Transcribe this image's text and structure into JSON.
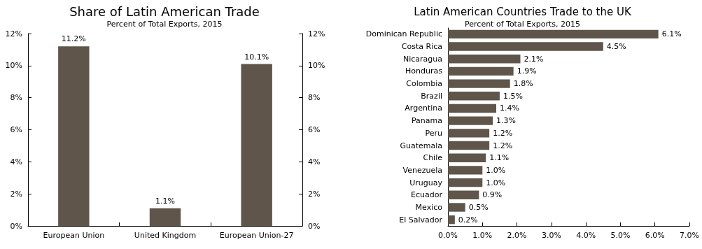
{
  "chart_data": [
    {
      "type": "bar",
      "title": "Share of Latin American Trade",
      "subtitle": "Percent of Total Exports, 2015",
      "categories": [
        "European Union",
        "United Kingdom",
        "European Union-27"
      ],
      "values": [
        11.2,
        1.1,
        10.1
      ],
      "value_labels": [
        "11.2%",
        "1.1%",
        "10.1%"
      ],
      "color": "#5f554a",
      "ylim": [
        0,
        12
      ],
      "yticks": [
        {
          "value": 0,
          "label": "0%"
        },
        {
          "value": 2,
          "label": "2%"
        },
        {
          "value": 4,
          "label": "4%"
        },
        {
          "value": 6,
          "label": "6%"
        },
        {
          "value": 8,
          "label": "8%"
        },
        {
          "value": 10,
          "label": "10%"
        },
        {
          "value": 12,
          "label": "12%"
        }
      ],
      "y2lim": [
        0,
        12
      ],
      "y2ticks": [
        {
          "value": 0,
          "label": "0%"
        },
        {
          "value": 2,
          "label": "2%"
        },
        {
          "value": 4,
          "label": "4%"
        },
        {
          "value": 6,
          "label": "6%"
        },
        {
          "value": 8,
          "label": "8%"
        },
        {
          "value": 10,
          "label": "10%"
        },
        {
          "value": 12,
          "label": "12%"
        }
      ],
      "grid": false
    },
    {
      "type": "bar",
      "orientation": "horizontal",
      "title": "Latin American Countries Trade to the UK",
      "subtitle": "Percent of Total Exports, 2015",
      "categories": [
        "Dominican Republic",
        "Costa Rica",
        "Nicaragua",
        "Honduras",
        "Colombia",
        "Brazil",
        "Argentina",
        "Panama",
        "Peru",
        "Guatemala",
        "Chile",
        "Venezuela",
        "Uruguay",
        "Ecuador",
        "Mexico",
        "El Salvador"
      ],
      "values": [
        6.1,
        4.5,
        2.1,
        1.9,
        1.8,
        1.5,
        1.4,
        1.3,
        1.2,
        1.2,
        1.1,
        1.0,
        1.0,
        0.9,
        0.5,
        0.2
      ],
      "value_labels": [
        "6.1%",
        "4.5%",
        "2.1%",
        "1.9%",
        "1.8%",
        "1.5%",
        "1.4%",
        "1.3%",
        "1.2%",
        "1.2%",
        "1.1%",
        "1.0%",
        "1.0%",
        "0.9%",
        "0.5%",
        "0.2%"
      ],
      "color": "#5f554a",
      "xlim": [
        0,
        7
      ],
      "xticks": [
        {
          "value": 0,
          "label": "0.0%"
        },
        {
          "value": 1,
          "label": "1.0%"
        },
        {
          "value": 2,
          "label": "2.0%"
        },
        {
          "value": 3,
          "label": "3.0%"
        },
        {
          "value": 4,
          "label": "4.0%"
        },
        {
          "value": 5,
          "label": "5.0%"
        },
        {
          "value": 6,
          "label": "6.0%"
        },
        {
          "value": 7,
          "label": "7.0%"
        }
      ],
      "grid": false
    }
  ]
}
